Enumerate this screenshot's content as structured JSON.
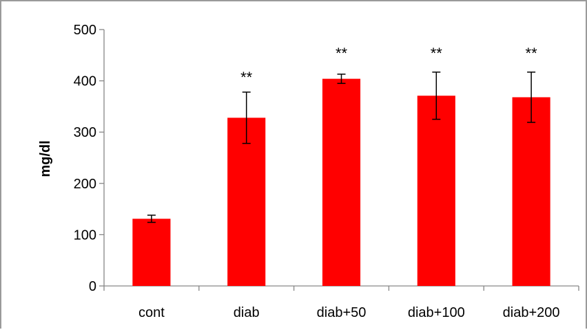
{
  "chart_data": {
    "type": "bar",
    "title": "",
    "xlabel": "",
    "ylabel": "mg/dl",
    "ylim": [
      0,
      500
    ],
    "yticks": [
      0,
      100,
      200,
      300,
      400,
      500
    ],
    "grid": false,
    "legend": "none",
    "categories": [
      "cont",
      "diab",
      "diab+50",
      "diab+100",
      "diab+200"
    ],
    "series": [
      {
        "values": [
          131,
          328,
          404,
          371,
          368
        ],
        "errors": [
          7,
          50,
          9,
          46,
          49
        ],
        "significance": [
          "",
          "**",
          "**",
          "**",
          "**"
        ],
        "color": "#ff0000"
      }
    ],
    "error_bar_color": "#000000",
    "axis_color": "#868686"
  }
}
